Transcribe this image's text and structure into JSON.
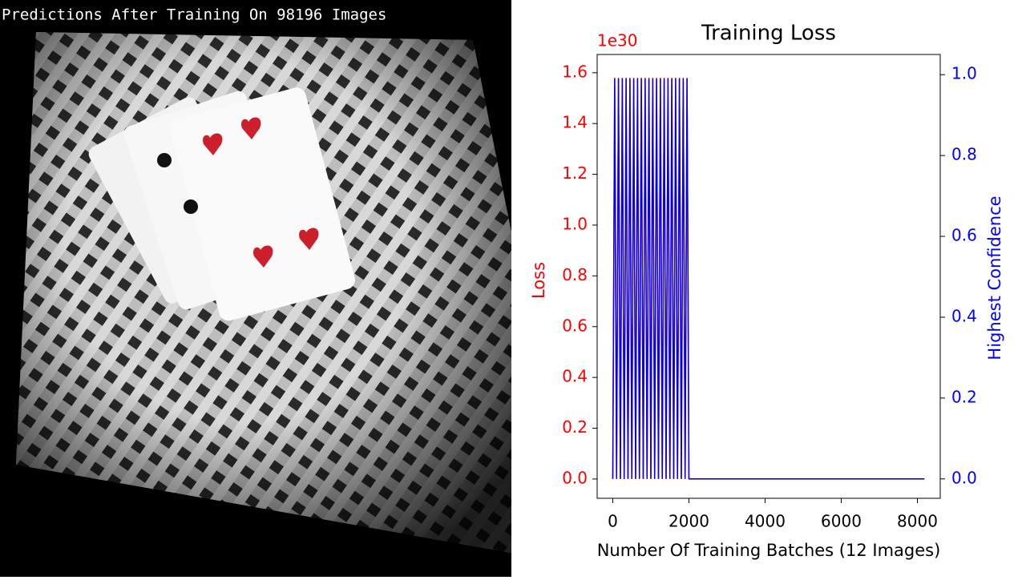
{
  "header": {
    "title": "Predictions After Training On 98196 Images"
  },
  "chart_data": {
    "type": "line",
    "title": "Training Loss",
    "xlabel": "Number Of Training Batches (12 Images)",
    "ylabel": "Loss",
    "y2label": "Highest Confidence",
    "y_offset_label": "1e30",
    "x": [
      0,
      50,
      100,
      150,
      200,
      250,
      300,
      350,
      400,
      450,
      500,
      550,
      600,
      650,
      700,
      750,
      800,
      850,
      900,
      950,
      1000,
      1050,
      1100,
      1150,
      1200,
      1250,
      1300,
      1350,
      1400,
      1450,
      1500,
      1550,
      1600,
      1650,
      1700,
      1750,
      1800,
      1850,
      1900,
      1950,
      2000,
      8183
    ],
    "series": [
      {
        "name": "Loss",
        "color": "#ff0000",
        "values": [
          0,
          1.58,
          0,
          1.58,
          0,
          1.58,
          0,
          1.58,
          0,
          1.58,
          0,
          1.58,
          0,
          1.58,
          0,
          1.58,
          0,
          1.58,
          0,
          1.58,
          0,
          1.58,
          0,
          1.58,
          0,
          1.58,
          0,
          1.58,
          0,
          1.58,
          0,
          1.58,
          0,
          1.58,
          0,
          1.58,
          0,
          1.58,
          0,
          1.58,
          0,
          0
        ]
      },
      {
        "name": "Highest Confidence",
        "color": "#0000ff",
        "axis": "y2",
        "values": [
          0,
          0.99,
          0,
          0.99,
          0,
          0.99,
          0,
          0.99,
          0,
          0.99,
          0,
          0.99,
          0,
          0.99,
          0,
          0.99,
          0,
          0.99,
          0,
          0.99,
          0,
          0.99,
          0,
          0.99,
          0,
          0.99,
          0,
          0.99,
          0,
          0.99,
          0,
          0.99,
          0,
          0.99,
          0,
          0.99,
          0,
          0.99,
          0,
          0.99,
          0,
          0
        ]
      }
    ],
    "xlim": [
      -410,
      8600
    ],
    "xticks": [
      0,
      2000,
      4000,
      6000,
      8000
    ],
    "ylim": [
      -0.076,
      1.672
    ],
    "yticks": [
      {
        "value": 0,
        "label": "0.0"
      },
      0.2,
      0.4,
      0.6,
      0.8,
      {
        "value": 1,
        "label": "1.0"
      },
      1.2,
      1.4,
      1.6
    ],
    "y2lim": [
      -0.048,
      1.05
    ],
    "y2ticks": [
      {
        "value": 0,
        "label": "0.0"
      },
      0.2,
      0.4,
      0.6,
      0.8,
      {
        "value": 1,
        "label": "1.0"
      }
    ]
  }
}
